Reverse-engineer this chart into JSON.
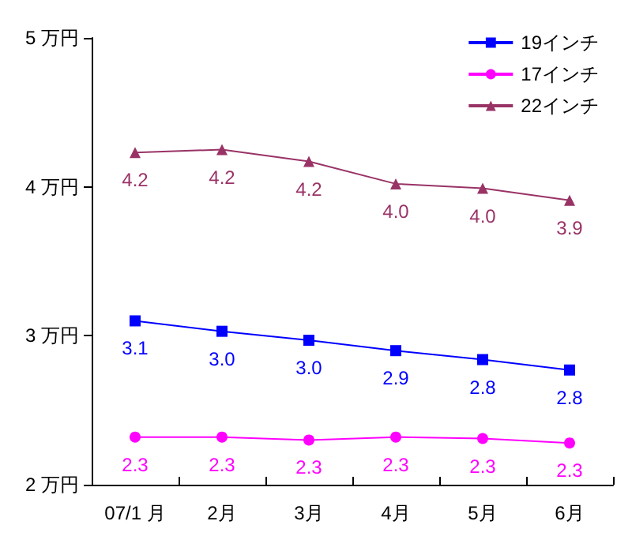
{
  "chart_data": {
    "type": "line",
    "categories": [
      "07/1 月",
      "2月",
      "3月",
      "4月",
      "5月",
      "6月"
    ],
    "series": [
      {
        "name": "19インチ",
        "color": "#0000ff",
        "marker": "square",
        "values": [
          3.1,
          3.03,
          2.97,
          2.9,
          2.84,
          2.77
        ],
        "value_labels": [
          "3.1",
          "3.0",
          "3.0",
          "2.9",
          "2.8",
          "2.8"
        ]
      },
      {
        "name": "17インチ",
        "color": "#ff00ff",
        "marker": "circle",
        "values": [
          2.32,
          2.32,
          2.3,
          2.32,
          2.31,
          2.28
        ],
        "value_labels": [
          "2.3",
          "2.3",
          "2.3",
          "2.3",
          "2.3",
          "2.3"
        ]
      },
      {
        "name": "22インチ",
        "color": "#993366",
        "marker": "triangle",
        "values": [
          4.23,
          4.25,
          4.17,
          4.02,
          3.99,
          3.91
        ],
        "value_labels": [
          "4.2",
          "4.2",
          "4.2",
          "4.0",
          "4.0",
          "3.9"
        ]
      }
    ],
    "ylim": [
      2,
      5
    ],
    "yticks": [
      {
        "value": 2,
        "label": "2 万円"
      },
      {
        "value": 3,
        "label": "3 万円"
      },
      {
        "value": 4,
        "label": "4 万円"
      },
      {
        "value": 5,
        "label": "5 万円"
      }
    ],
    "legend": "top right",
    "grid": false,
    "line_style": "solid"
  }
}
